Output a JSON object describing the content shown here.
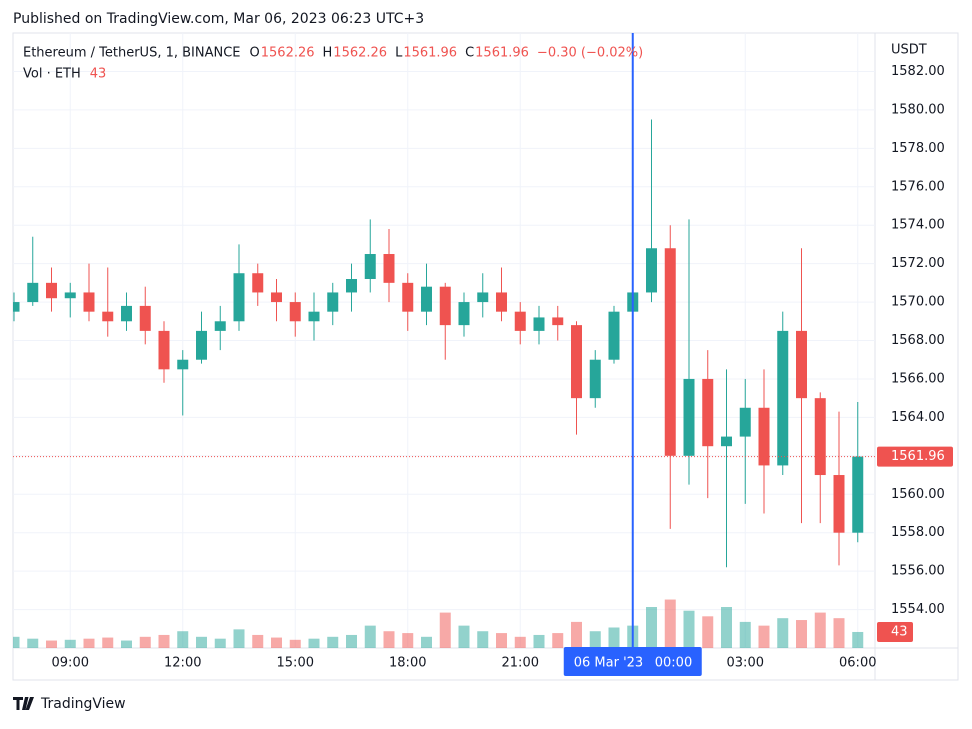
{
  "published": "Published on TradingView.com, Mar 06, 2023 06:23 UTC+3",
  "footer": "TradingView",
  "chart_data": {
    "type": "candlestick",
    "symbol": "Ethereum / TetherUS, 1, BINANCE",
    "legend": {
      "o_label": "O",
      "o": 1562.26,
      "h_label": "H",
      "h": 1562.26,
      "l_label": "L",
      "l": 1561.96,
      "c_label": "C",
      "c": 1561.96,
      "change": "−0.30 (−0.02%)"
    },
    "volume_label": "Vol · ETH",
    "last_volume": 43,
    "last_price": 1561.96,
    "axis_unit": "USDT",
    "up_color": "#26a69a",
    "down_color": "#ef5350",
    "x": [
      "07:30",
      "08:00",
      "08:30",
      "09:00",
      "09:30",
      "10:00",
      "10:30",
      "11:00",
      "11:30",
      "12:00",
      "12:30",
      "13:00",
      "13:30",
      "14:00",
      "14:30",
      "15:00",
      "15:30",
      "16:00",
      "16:30",
      "17:00",
      "17:30",
      "18:00",
      "18:30",
      "19:00",
      "19:30",
      "20:00",
      "20:30",
      "21:00",
      "21:30",
      "22:00",
      "22:30",
      "23:00",
      "23:30",
      "00:00",
      "00:30",
      "01:00",
      "01:30",
      "02:00",
      "02:30",
      "03:00",
      "03:30",
      "04:00",
      "04:30",
      "05:00",
      "05:30",
      "06:00"
    ],
    "open": [
      1569.5,
      1570,
      1571,
      1570.2,
      1570.5,
      1569.5,
      1569,
      1569.8,
      1568.5,
      1566.5,
      1567,
      1568.5,
      1569,
      1571.5,
      1570.5,
      1570,
      1569,
      1569.5,
      1570.5,
      1571.2,
      1572.5,
      1571,
      1569.5,
      1570.8,
      1568.8,
      1570,
      1570.5,
      1569.5,
      1568.5,
      1569.2,
      1568.8,
      1565,
      1567,
      1569.5,
      1570.5,
      1572.8,
      1562,
      1566,
      1562.5,
      1563,
      1564.5,
      1561.5,
      1568.5,
      1565,
      1561,
      1558
    ],
    "high": [
      1570.5,
      1573.4,
      1571.8,
      1571,
      1572,
      1571.8,
      1570.5,
      1570.8,
      1569,
      1567.5,
      1569.5,
      1569.8,
      1573,
      1572,
      1571.2,
      1570.5,
      1570.5,
      1571,
      1572,
      1574.3,
      1573.8,
      1571.5,
      1572,
      1571,
      1570.5,
      1571.5,
      1571.8,
      1570,
      1569.8,
      1569.8,
      1569,
      1567.5,
      1569.8,
      1570.8,
      1579.5,
      1574,
      1574.3,
      1567.5,
      1566.5,
      1566,
      1566.5,
      1569.5,
      1572.8,
      1565.3,
      1564.3,
      1564.8
    ],
    "low": [
      1569,
      1569.8,
      1569.5,
      1569.2,
      1569,
      1568.2,
      1568.5,
      1567.8,
      1565.8,
      1564.1,
      1566.8,
      1567.5,
      1568.5,
      1569.8,
      1569,
      1568.2,
      1568,
      1568.8,
      1569.5,
      1570.5,
      1570,
      1568.5,
      1568.8,
      1567,
      1568.2,
      1569.2,
      1569,
      1567.8,
      1567.8,
      1568,
      1563.1,
      1564.5,
      1566.8,
      1569,
      1570,
      1558.2,
      1560.5,
      1559.8,
      1556.2,
      1559.5,
      1559,
      1561,
      1558.5,
      1558.5,
      1556.3,
      1557.5
    ],
    "close": [
      1570,
      1571,
      1570.2,
      1570.5,
      1569.5,
      1569,
      1569.8,
      1568.5,
      1566.5,
      1567,
      1568.5,
      1569,
      1571.5,
      1570.5,
      1570,
      1569,
      1569.5,
      1570.5,
      1571.2,
      1572.5,
      1571,
      1569.5,
      1570.8,
      1568.8,
      1570,
      1570.5,
      1569.5,
      1568.5,
      1569.2,
      1568.8,
      1565,
      1567,
      1569.5,
      1570.5,
      1572.8,
      1562,
      1566,
      1562.5,
      1563,
      1564.5,
      1561.5,
      1568.5,
      1565,
      1561,
      1558,
      1561.96
    ],
    "volume": [
      30,
      25,
      20,
      22,
      25,
      28,
      20,
      30,
      35,
      45,
      30,
      25,
      50,
      35,
      28,
      22,
      25,
      30,
      35,
      60,
      45,
      40,
      30,
      95,
      60,
      45,
      40,
      30,
      35,
      40,
      70,
      45,
      55,
      60,
      110,
      130,
      100,
      85,
      110,
      70,
      60,
      80,
      75,
      95,
      80,
      43
    ],
    "ylim": [
      1552,
      1584
    ],
    "y2lim": [
      0,
      1650
    ],
    "yticks": [
      {
        "value": 1554,
        "label": "1554.00"
      },
      {
        "value": 1556,
        "label": "1556.00"
      },
      {
        "value": 1558,
        "label": "1558.00"
      },
      {
        "value": 1560,
        "label": "1560.00"
      },
      {
        "value": 1562,
        "label": "1562.00"
      },
      {
        "value": 1564,
        "label": "1564.00"
      },
      {
        "value": 1566,
        "label": "1566.00"
      },
      {
        "value": 1568,
        "label": "1568.00"
      },
      {
        "value": 1570,
        "label": "1570.00"
      },
      {
        "value": 1572,
        "label": "1572.00"
      },
      {
        "value": 1574,
        "label": "1574.00"
      },
      {
        "value": 1576,
        "label": "1576.00"
      },
      {
        "value": 1578,
        "label": "1578.00"
      },
      {
        "value": 1580,
        "label": "1580.00"
      },
      {
        "value": 1582,
        "label": "1582.00"
      }
    ],
    "xticks": [
      "09:00",
      "12:00",
      "15:00",
      "18:00",
      "21:00",
      "03:00",
      "06:00"
    ],
    "crosshair": {
      "date": "06 Mar '23",
      "time": "00:00"
    },
    "grid": true
  }
}
